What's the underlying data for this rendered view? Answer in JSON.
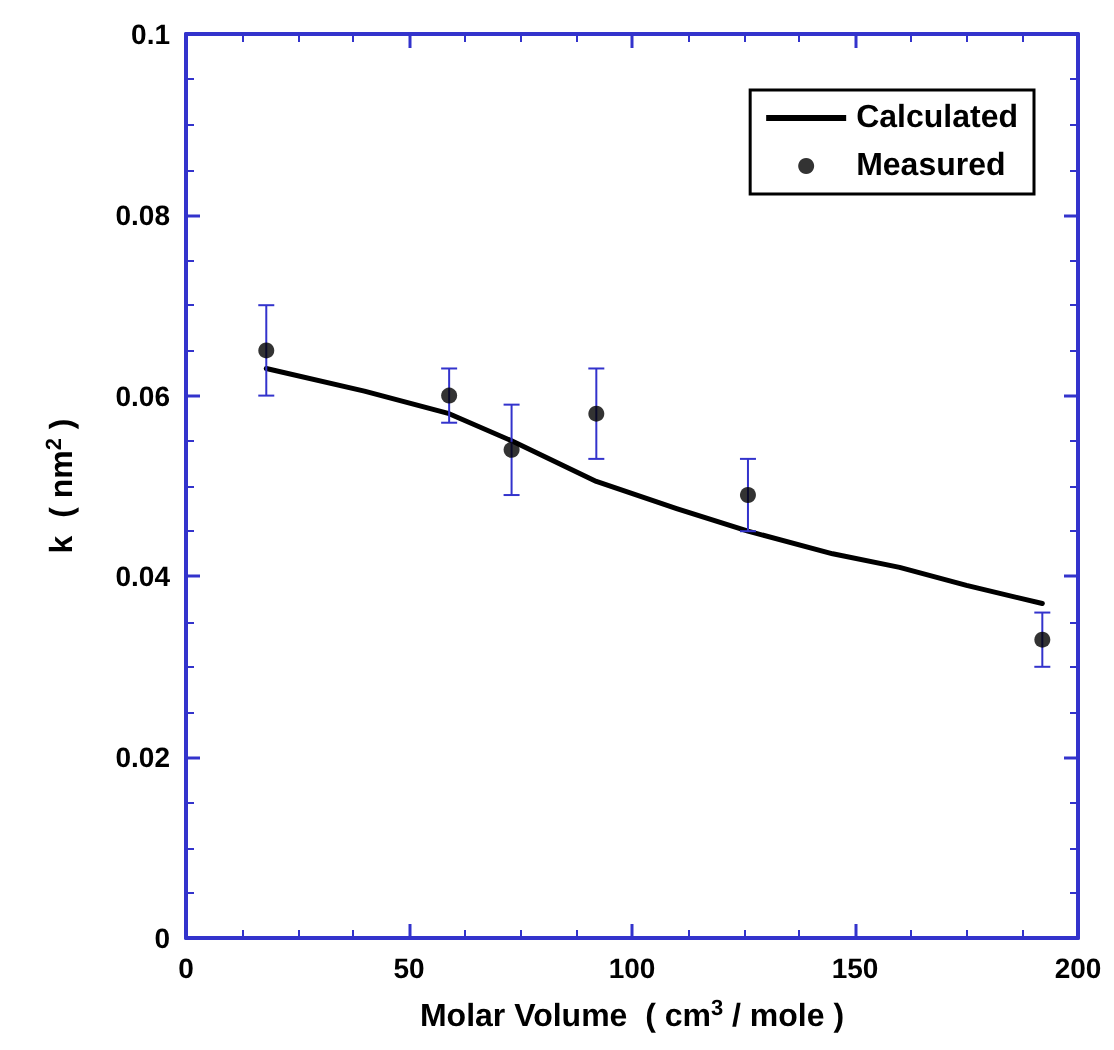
{
  "chart_data": {
    "type": "scatter",
    "xlabel": "Molar Volume  ( cm$^{3}$ / mole )",
    "ylabel": "k  ( nm$^{2}$ )",
    "xlim": [
      0,
      200
    ],
    "xticks": [
      0,
      50,
      100,
      150,
      200
    ],
    "ylim": [
      0,
      0.1
    ],
    "yticks": [
      0,
      0.02,
      0.04,
      0.06,
      0.08,
      0.1
    ],
    "grid": false,
    "legend": "top right",
    "series": [
      {
        "name": "Calculated",
        "type": "line",
        "marker": "none",
        "line_style": "solid",
        "color": "#000000",
        "x": [
          18,
          40,
          59,
          73,
          92,
          110,
          126,
          145,
          160,
          175,
          192
        ],
        "values": [
          0.063,
          0.0605,
          0.058,
          0.055,
          0.0505,
          0.0475,
          0.045,
          0.0425,
          0.041,
          0.039,
          0.037
        ]
      },
      {
        "name": "Measured",
        "marker": "circle",
        "color": "#000000",
        "x": [
          18,
          59,
          73,
          92,
          126,
          192
        ],
        "values": [
          0.065,
          0.06,
          0.054,
          0.058,
          0.049,
          0.033
        ],
        "errors": [
          [
            0.06,
            0.07
          ],
          [
            0.057,
            0.063
          ],
          [
            0.049,
            0.059
          ],
          [
            0.053,
            0.063
          ],
          [
            0.045,
            0.053
          ],
          [
            0.03,
            0.036
          ]
        ]
      }
    ]
  }
}
